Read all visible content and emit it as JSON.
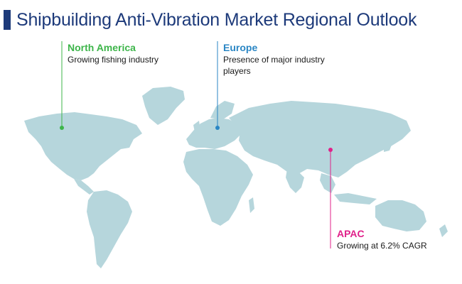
{
  "title": "Shipbuilding Anti-Vibration Market Regional Outlook",
  "colors": {
    "title_text": "#1d3a7a",
    "title_accent": "#1d3a7a",
    "land": "#b6d6dc",
    "north_america": "#3db54a",
    "europe": "#2a86c4",
    "apac": "#e0218a"
  },
  "regions": [
    {
      "id": "north-america",
      "name": "North America",
      "description": "Growing fishing industry",
      "color": "#3db54a"
    },
    {
      "id": "europe",
      "name": "Europe",
      "description": "Presence of major industry players",
      "color": "#2a86c4"
    },
    {
      "id": "apac",
      "name": "APAC",
      "description": "Growing at 6.2% CAGR",
      "color": "#e0218a"
    }
  ]
}
